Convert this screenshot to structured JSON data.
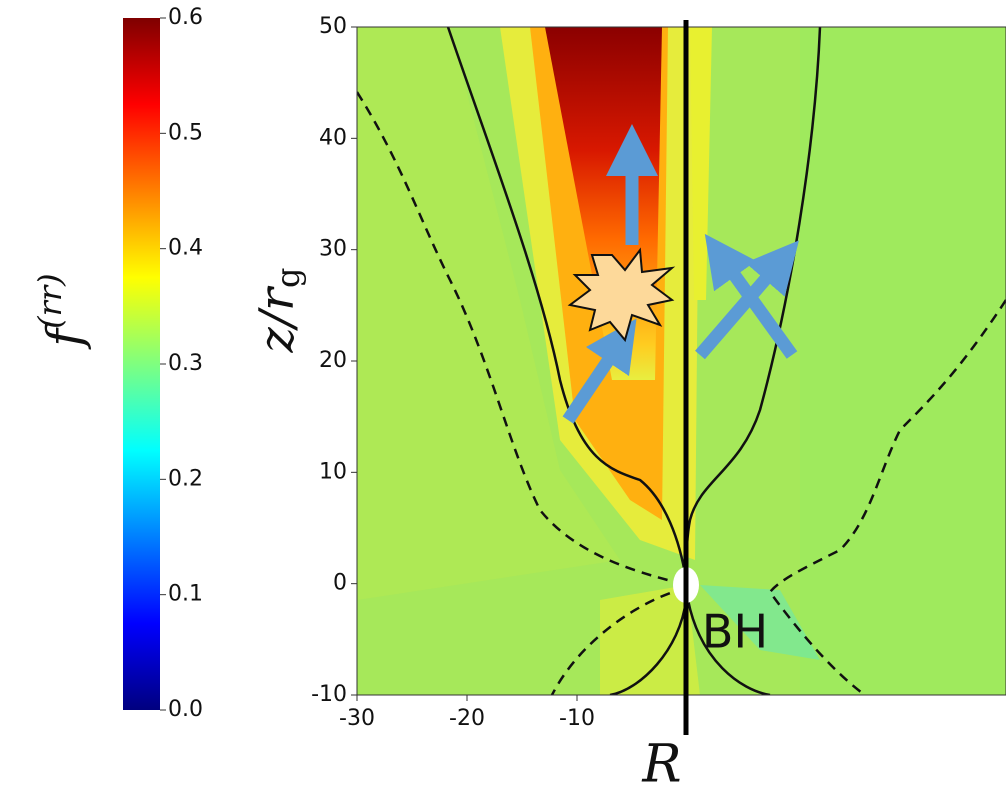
{
  "chart_data": {
    "type": "contour",
    "colorbar_label": {
      "main": "f",
      "sup": "(rr)"
    },
    "clim": [
      0,
      0.6
    ],
    "cticks": [
      {
        "value": 0,
        "label": "0.0"
      },
      0.1,
      0.2,
      0.3,
      0.4,
      0.5,
      0.6
    ],
    "xlabel": "R",
    "ylabel": {
      "main": "z/r",
      "sub": "g"
    },
    "xlim": [
      -30,
      29
    ],
    "xticks": [
      -30,
      -20,
      -10
    ],
    "ylim": [
      -10,
      50
    ],
    "yticks": [
      -10,
      0,
      10,
      20,
      30,
      40,
      50
    ],
    "annotation": "BH"
  }
}
